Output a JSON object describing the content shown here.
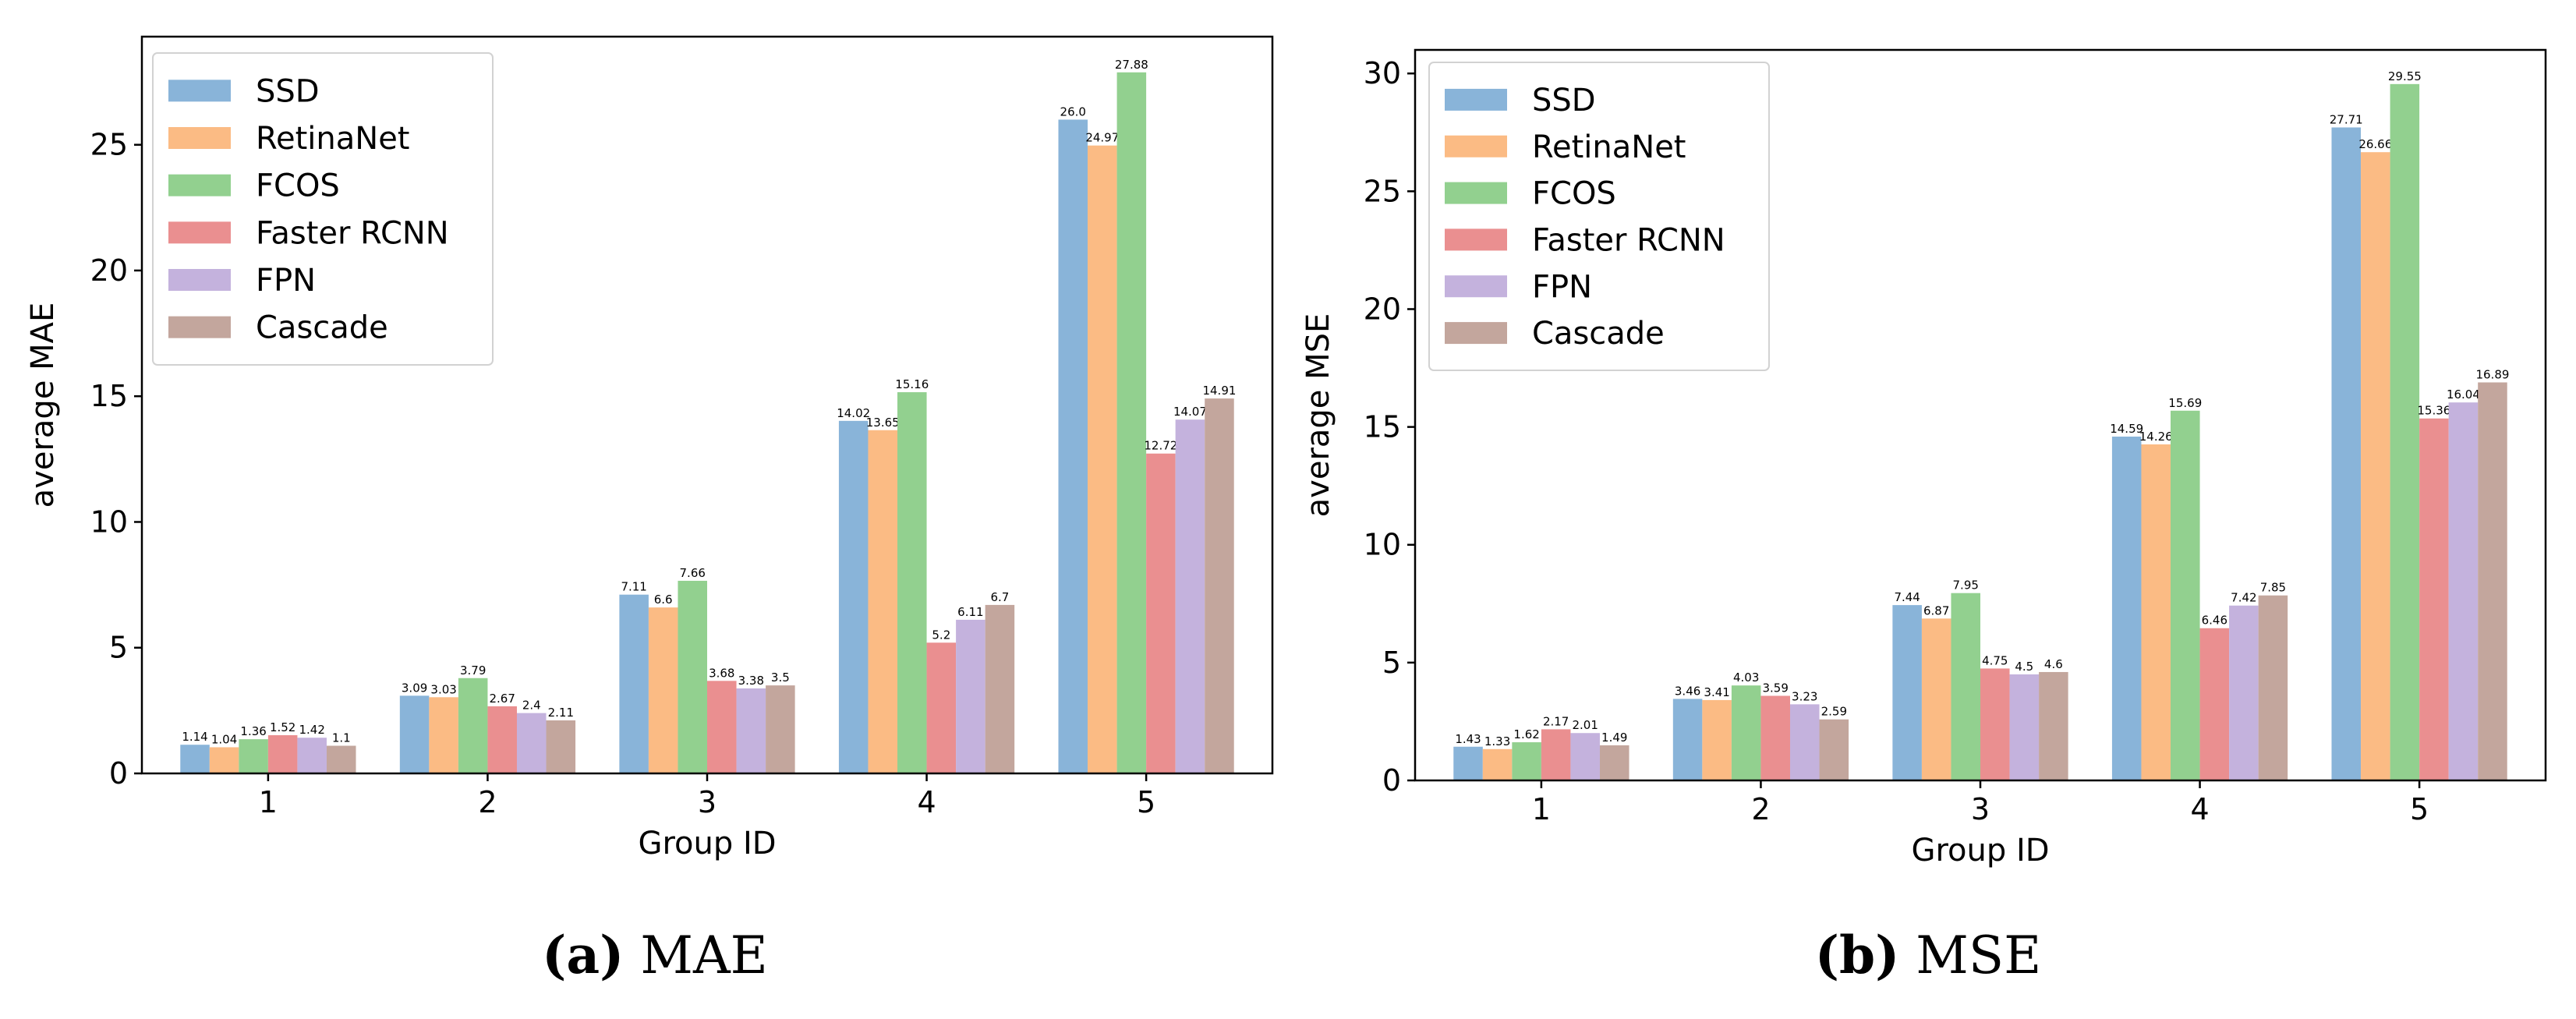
{
  "series_colors": [
    "#89b4d9",
    "#fbbb84",
    "#92d08f",
    "#ea8f90",
    "#c4b2dd",
    "#c3a69d"
  ],
  "chart_data": [
    {
      "type": "bar",
      "caption_letter": "(a)",
      "caption_text": "MAE",
      "xlabel": "Group ID",
      "ylabel": "average MAE",
      "ylim": [
        0,
        29.3
      ],
      "yticks": [
        0,
        5,
        10,
        15,
        20,
        25
      ],
      "categories": [
        "1",
        "2",
        "3",
        "4",
        "5"
      ],
      "legend_placement": "top-left",
      "grid": false,
      "series": [
        {
          "name": "SSD",
          "values": [
            1.14,
            3.09,
            7.11,
            14.02,
            26.0
          ],
          "labels": [
            "1.14",
            "3.09",
            "7.11",
            "14.02",
            "26.0"
          ]
        },
        {
          "name": "RetinaNet",
          "values": [
            1.04,
            3.03,
            6.6,
            13.65,
            24.97
          ],
          "labels": [
            "1.04",
            "3.03",
            "6.6",
            "13.65",
            "24.97"
          ]
        },
        {
          "name": "FCOS",
          "values": [
            1.36,
            3.79,
            7.66,
            15.16,
            27.88
          ],
          "labels": [
            "1.36",
            "3.79",
            "7.66",
            "15.16",
            "27.88"
          ]
        },
        {
          "name": "Faster RCNN",
          "values": [
            1.52,
            2.67,
            3.68,
            5.2,
            12.72
          ],
          "labels": [
            "1.52",
            "2.67",
            "3.68",
            "5.2",
            "12.72"
          ]
        },
        {
          "name": "FPN",
          "values": [
            1.42,
            2.4,
            3.38,
            6.11,
            14.07
          ],
          "labels": [
            "1.42",
            "2.4",
            "3.38",
            "6.11",
            "14.07"
          ]
        },
        {
          "name": "Cascade",
          "values": [
            1.1,
            2.11,
            3.5,
            6.7,
            14.91
          ],
          "labels": [
            "1.1",
            "2.11",
            "3.5",
            "6.7",
            "14.91"
          ]
        }
      ]
    },
    {
      "type": "bar",
      "caption_letter": "(b)",
      "caption_text": "MSE",
      "xlabel": "Group ID",
      "ylabel": "average MSE",
      "ylim": [
        0,
        31.0
      ],
      "yticks": [
        0,
        5,
        10,
        15,
        20,
        25,
        30
      ],
      "categories": [
        "1",
        "2",
        "3",
        "4",
        "5"
      ],
      "legend_placement": "top-left",
      "grid": false,
      "series": [
        {
          "name": "SSD",
          "values": [
            1.43,
            3.46,
            7.44,
            14.59,
            27.71
          ],
          "labels": [
            "1.43",
            "3.46",
            "7.44",
            "14.59",
            "27.71"
          ]
        },
        {
          "name": "RetinaNet",
          "values": [
            1.33,
            3.41,
            6.87,
            14.26,
            26.66
          ],
          "labels": [
            "1.33",
            "3.41",
            "6.87",
            "14.26",
            "26.66"
          ]
        },
        {
          "name": "FCOS",
          "values": [
            1.62,
            4.03,
            7.95,
            15.69,
            29.55
          ],
          "labels": [
            "1.62",
            "4.03",
            "7.95",
            "15.69",
            "29.55"
          ]
        },
        {
          "name": "Faster RCNN",
          "values": [
            2.17,
            3.59,
            4.75,
            6.46,
            15.36
          ],
          "labels": [
            "2.17",
            "3.59",
            "4.75",
            "6.46",
            "15.36"
          ]
        },
        {
          "name": "FPN",
          "values": [
            2.01,
            3.23,
            4.5,
            7.42,
            16.04
          ],
          "labels": [
            "2.01",
            "3.23",
            "4.5",
            "7.42",
            "16.04"
          ]
        },
        {
          "name": "Cascade",
          "values": [
            1.49,
            2.59,
            4.6,
            7.85,
            16.89
          ],
          "labels": [
            "1.49",
            "2.59",
            "4.6",
            "7.85",
            "16.89"
          ]
        }
      ]
    }
  ]
}
